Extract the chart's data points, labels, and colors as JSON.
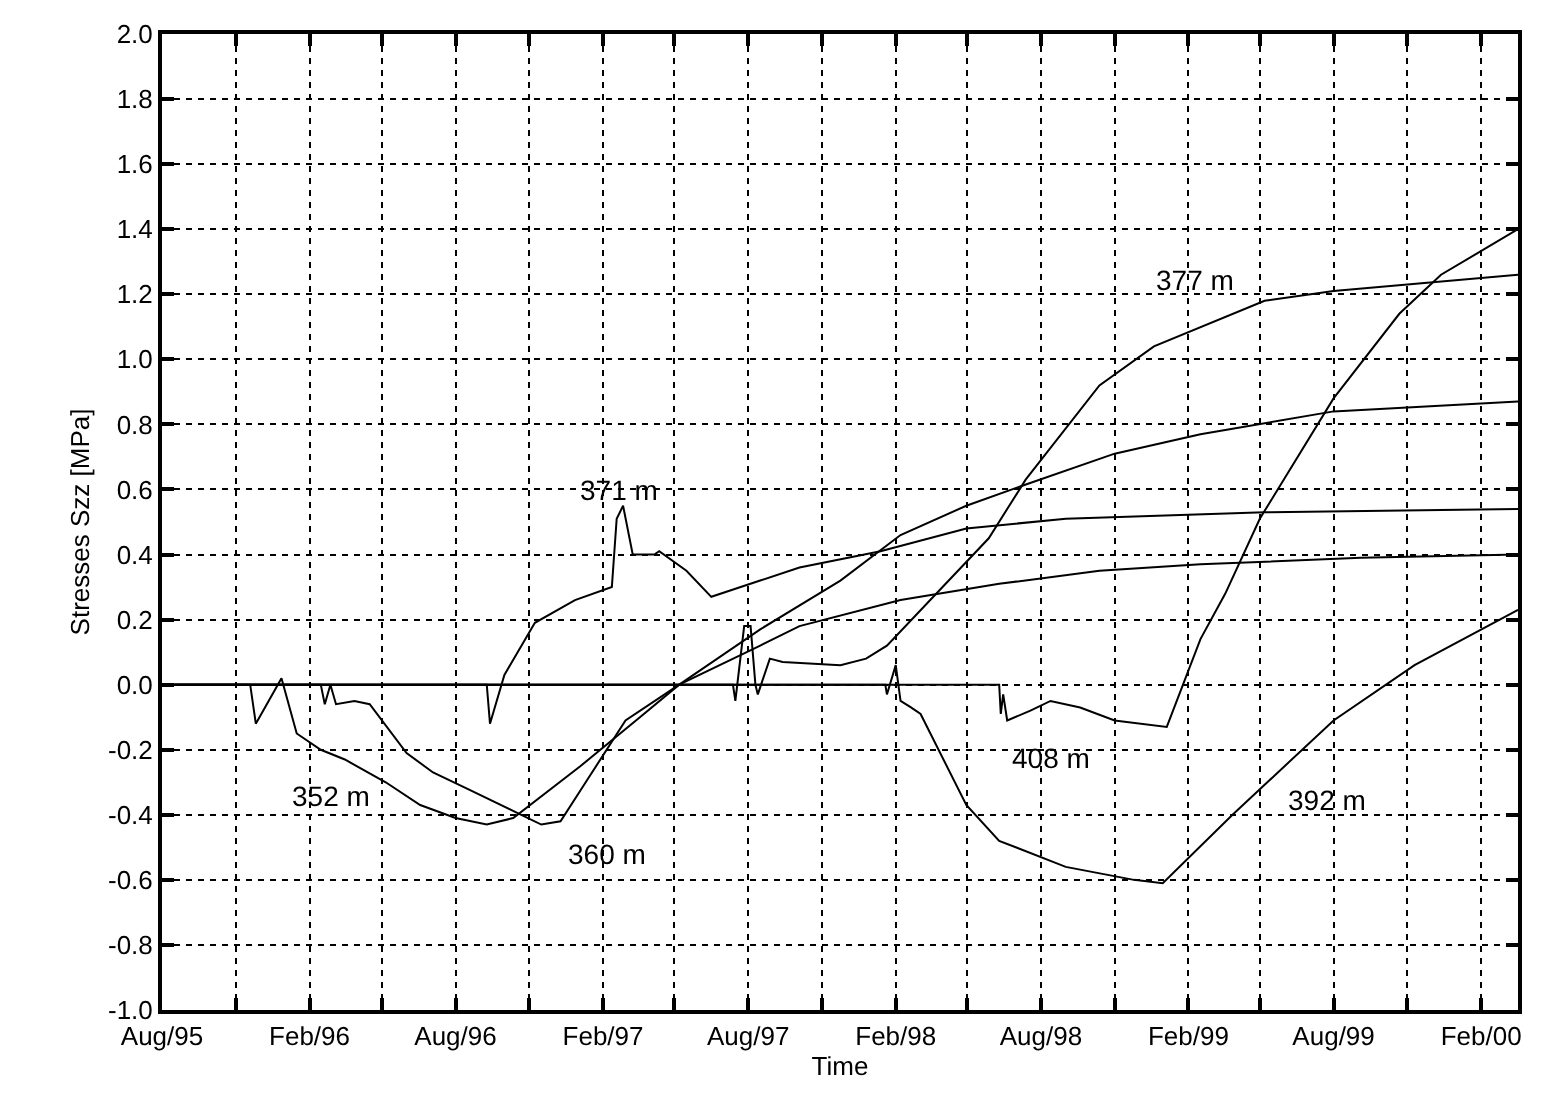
{
  "chart_data": {
    "type": "line",
    "xlabel": "Time",
    "ylabel": "Stresses Szz [MPa]",
    "xlim": [
      "1995-08-01",
      "2000-03-18"
    ],
    "ylim": [
      -1.0,
      2.0
    ],
    "xticks": [
      {
        "value": "1995-08-01",
        "label": "Aug/95"
      },
      {
        "value": "1995-11-01",
        "label": null
      },
      {
        "value": "1996-02-01",
        "label": "Feb/96"
      },
      {
        "value": "1996-05-01",
        "label": null
      },
      {
        "value": "1996-08-01",
        "label": "Aug/96"
      },
      {
        "value": "1996-11-01",
        "label": null
      },
      {
        "value": "1997-02-01",
        "label": "Feb/97"
      },
      {
        "value": "1997-05-01",
        "label": null
      },
      {
        "value": "1997-08-01",
        "label": "Aug/97"
      },
      {
        "value": "1997-11-01",
        "label": null
      },
      {
        "value": "1998-02-01",
        "label": "Feb/98"
      },
      {
        "value": "1998-05-01",
        "label": null
      },
      {
        "value": "1998-08-01",
        "label": "Aug/98"
      },
      {
        "value": "1998-11-01",
        "label": null
      },
      {
        "value": "1999-02-01",
        "label": "Feb/99"
      },
      {
        "value": "1999-05-01",
        "label": null
      },
      {
        "value": "1999-08-01",
        "label": "Aug/99"
      },
      {
        "value": "1999-11-01",
        "label": null
      },
      {
        "value": "2000-02-01",
        "label": "Feb/00"
      }
    ],
    "yticks": [
      {
        "value": -1.0,
        "label": "-1.0"
      },
      {
        "value": -0.8,
        "label": "-0.8"
      },
      {
        "value": -0.6,
        "label": "-0.6"
      },
      {
        "value": -0.4,
        "label": "-0.4"
      },
      {
        "value": -0.2,
        "label": "-0.2"
      },
      {
        "value": 0,
        "label": "0.0"
      },
      {
        "value": 0.2,
        "label": "0.2"
      },
      {
        "value": 0.4,
        "label": "0.4"
      },
      {
        "value": 0.6,
        "label": "0.6"
      },
      {
        "value": 0.8,
        "label": "0.8"
      },
      {
        "value": 1.0,
        "label": "1.0"
      },
      {
        "value": 1.2,
        "label": "1.2"
      },
      {
        "value": 1.4,
        "label": "1.4"
      },
      {
        "value": 1.6,
        "label": "1.6"
      },
      {
        "value": 1.8,
        "label": "1.8"
      },
      {
        "value": 2.0,
        "label": "2.0"
      }
    ],
    "grid": true,
    "series": [
      {
        "color": "#000000",
        "x": [
          "1995-08-01",
          "1995-11-19",
          "1995-11-26",
          "1995-12-28",
          "1996-01-16",
          "1996-02-15",
          "1996-03-16",
          "1996-05-06",
          "1996-06-18",
          "1996-08-01",
          "1996-09-09",
          "1996-10-12",
          "1997-01-04",
          "1997-03-19",
          "1997-05-07",
          "1997-08-16",
          "1997-10-04",
          "1998-02-07",
          "1998-06-10",
          "1998-10-13",
          "1999-02-16",
          "1999-09-04",
          "2000-03-18"
        ],
        "values": [
          0,
          0,
          -0.12,
          0.02,
          -0.15,
          -0.2,
          -0.23,
          -0.3,
          -0.37,
          -0.41,
          -0.43,
          -0.41,
          -0.25,
          -0.1,
          0,
          0.12,
          0.18,
          0.26,
          0.31,
          0.35,
          0.37,
          0.39,
          0.4
        ]
      },
      {
        "color": "#000000",
        "x": [
          "1995-08-01",
          "1996-02-15",
          "1996-02-20",
          "1996-02-27",
          "1996-03-05",
          "1996-03-28",
          "1996-04-16",
          "1996-06-01",
          "1996-07-04",
          "1996-08-16",
          "1996-10-22",
          "1996-11-16",
          "1996-12-10",
          "1997-01-13",
          "1997-03-01",
          "1997-05-07",
          "1997-08-16",
          "1997-11-24",
          "1998-02-07",
          "1998-04-30",
          "1998-07-07",
          "1998-11-01",
          "1999-02-16",
          "1999-08-01",
          "2000-03-18"
        ],
        "values": [
          0,
          0,
          -0.06,
          0,
          -0.06,
          -0.05,
          -0.06,
          -0.21,
          -0.27,
          -0.32,
          -0.4,
          -0.43,
          -0.42,
          -0.29,
          -0.11,
          0,
          0.17,
          0.32,
          0.46,
          0.55,
          0.61,
          0.71,
          0.77,
          0.84,
          0.87
        ]
      },
      {
        "color": "#000000",
        "x": [
          "1995-08-01",
          "1996-09-09",
          "1996-09-13",
          "1996-10-01",
          "1996-11-08",
          "1996-12-28",
          "1997-02-12",
          "1997-02-18",
          "1997-02-26",
          "1997-03-10",
          "1997-04-06",
          "1997-04-12",
          "1997-05-16",
          "1997-06-16",
          "1997-08-16",
          "1997-10-04",
          "1998-01-13",
          "1998-04-30",
          "1998-09-01",
          "1999-05-07",
          "2000-03-18"
        ],
        "values": [
          0,
          0,
          -0.12,
          0.03,
          0.19,
          0.26,
          0.3,
          0.51,
          0.55,
          0.4,
          0.4,
          0.41,
          0.35,
          0.27,
          0.32,
          0.36,
          0.41,
          0.48,
          0.51,
          0.53,
          0.54
        ]
      },
      {
        "color": "#000000",
        "x": [
          "1995-08-01",
          "1997-07-13",
          "1997-07-16",
          "1997-07-27",
          "1997-08-04",
          "1997-08-10",
          "1997-08-13",
          "1997-08-28",
          "1997-09-13",
          "1997-11-24",
          "1997-12-26",
          "1998-01-21",
          "1998-05-28",
          "1998-07-13",
          "1998-10-13",
          "1998-12-20",
          "1999-05-07",
          "1999-08-01",
          "2000-03-18"
        ],
        "values": [
          0,
          0,
          -0.05,
          0.18,
          0.18,
          0,
          -0.03,
          0.08,
          0.07,
          0.06,
          0.08,
          0.12,
          0.45,
          0.63,
          0.92,
          1.04,
          1.18,
          1.21,
          1.26
        ]
      },
      {
        "color": "#000000",
        "x": [
          "1995-08-01",
          "1998-01-19",
          "1998-01-21",
          "1998-02-01",
          "1998-02-07",
          "1998-02-20",
          "1998-03-04",
          "1998-04-30",
          "1998-06-10",
          "1998-09-01",
          "1998-11-25",
          "1998-12-31",
          "1999-03-28",
          "1999-08-01",
          "1999-11-10",
          "2000-03-18"
        ],
        "values": [
          0,
          0,
          -0.03,
          0.06,
          -0.05,
          -0.07,
          -0.09,
          -0.37,
          -0.48,
          -0.56,
          -0.6,
          -0.61,
          -0.4,
          -0.11,
          0.06,
          0.23
        ]
      },
      {
        "color": "#000000",
        "x": [
          "1995-08-01",
          "1998-06-10",
          "1998-06-12",
          "1998-06-15",
          "1998-06-20",
          "1998-07-19",
          "1998-08-13",
          "1998-09-19",
          "1998-11-01",
          "1999-01-05",
          "1999-02-16",
          "1999-03-19",
          "1999-05-01",
          "1999-08-01",
          "1999-10-22",
          "1999-12-13",
          "2000-03-18"
        ],
        "values": [
          0,
          0,
          -0.09,
          -0.03,
          -0.11,
          -0.08,
          -0.05,
          -0.07,
          -0.11,
          -0.13,
          0.14,
          0.28,
          0.51,
          0.88,
          1.14,
          1.26,
          1.4
        ]
      }
    ],
    "annotations": [
      {
        "text": "352 m",
        "x": "1996-03-16",
        "y": -0.23
      },
      {
        "text": "360 m",
        "x": "1996-12-10",
        "y": -0.42
      },
      {
        "text": "371 m",
        "x": "1997-02-26",
        "y": 0.55
      },
      {
        "text": "377 m",
        "x": "1999-05-07",
        "y": 1.18
      },
      {
        "text": "408 m",
        "x": "1998-08-13",
        "y": -0.05
      },
      {
        "text": "392 m",
        "x": "1999-08-01",
        "y": -0.11
      }
    ]
  }
}
